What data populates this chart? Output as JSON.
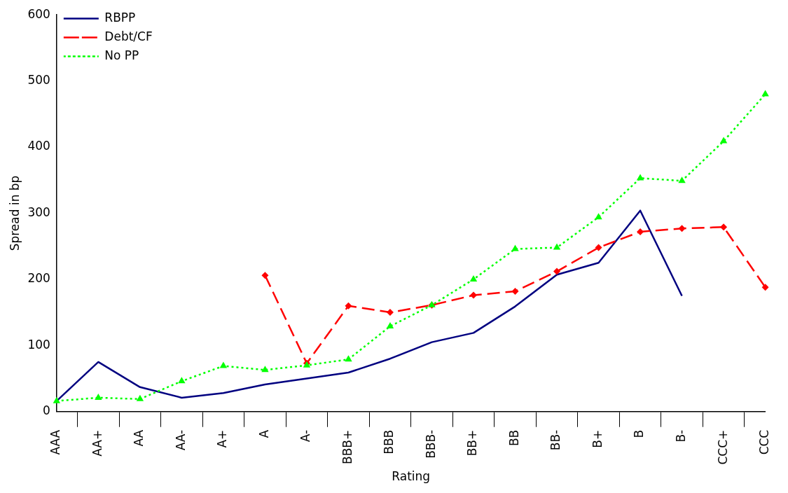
{
  "chart_data": {
    "type": "line",
    "xlabel": "Rating",
    "ylabel": "Spread in bp",
    "categories": [
      "AAA",
      "AA+",
      "AA",
      "AA-",
      "A+",
      "A",
      "A-",
      "BBB+",
      "BBB",
      "BBB-",
      "BB+",
      "BB",
      "BB-",
      "B+",
      "B",
      "B-",
      "CCC+",
      "CCC"
    ],
    "series": [
      {
        "name": "RBPP",
        "color": "#000080",
        "marker": "none",
        "line_style": "solid",
        "values": [
          16,
          75,
          37,
          21,
          28,
          41,
          50,
          59,
          80,
          105,
          119,
          159,
          207,
          225,
          304,
          175,
          null,
          null
        ]
      },
      {
        "name": "Debt/CF",
        "color": "#ff0000",
        "marker": "diamond",
        "line_style": "dashed",
        "values": [
          null,
          null,
          null,
          null,
          null,
          206,
          73,
          160,
          150,
          161,
          176,
          182,
          212,
          248,
          272,
          277,
          279,
          188
        ]
      },
      {
        "name": "No PP",
        "color": "#00ff00",
        "marker": "triangle",
        "line_style": "dotted",
        "values": [
          16,
          21,
          19,
          46,
          69,
          63,
          70,
          79,
          129,
          161,
          200,
          246,
          248,
          294,
          353,
          349,
          409,
          480
        ]
      }
    ],
    "ylim": [
      0,
      600
    ],
    "yticks": [
      0,
      100,
      200,
      300,
      400,
      500,
      600
    ],
    "grid": false,
    "legend": "top left"
  }
}
